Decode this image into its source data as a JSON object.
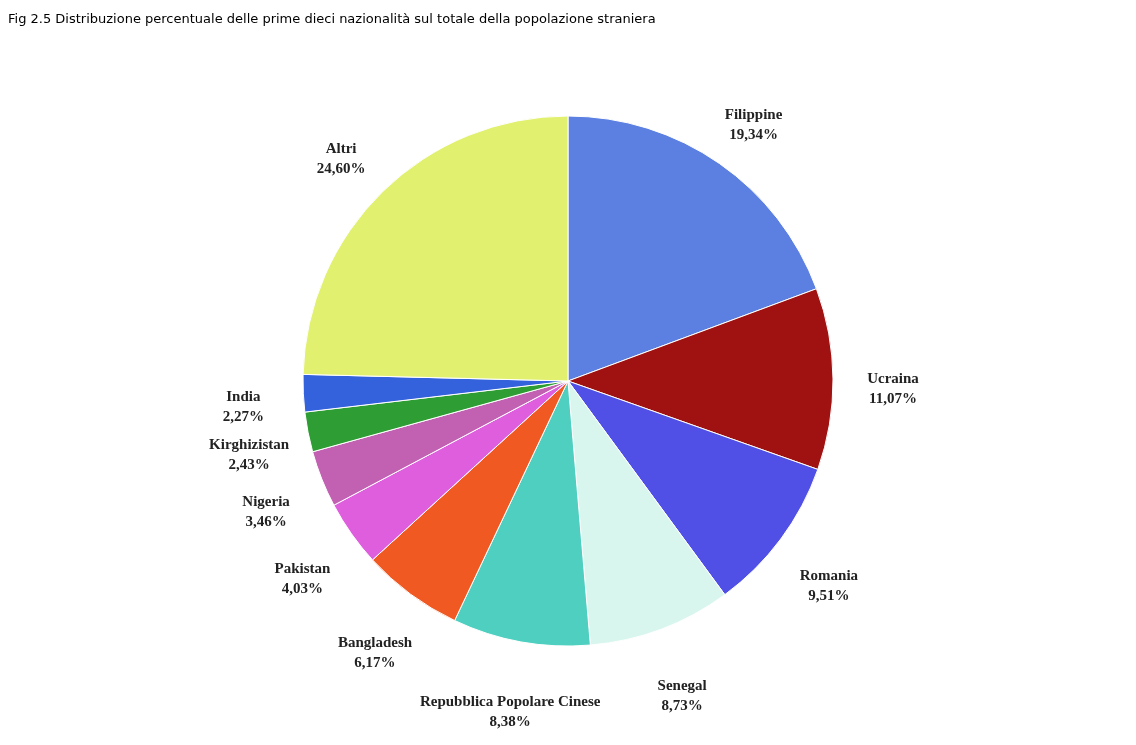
{
  "chart_data": {
    "type": "pie",
    "title": "Fig 2.5 Distribuzione percentuale delle prime dieci nazionalità sul totale della popolazione straniera",
    "categories": [
      "Filippine",
      "Ucraina",
      "Romania",
      "Senegal",
      "Repubblica Popolare Cinese",
      "Bangladesh",
      "Pakistan",
      "Nigeria",
      "Kirghizistan",
      "India",
      "Altri"
    ],
    "values": [
      19.34,
      11.07,
      9.51,
      8.73,
      8.38,
      6.17,
      4.03,
      3.46,
      2.43,
      2.27,
      24.6
    ],
    "value_labels": [
      "19,34%",
      "11,07%",
      "9,51%",
      "8,73%",
      "8,38%",
      "6,17%",
      "4,03%",
      "3,46%",
      "2,43%",
      "2,27%",
      "24,60%"
    ],
    "colors": [
      "#5b80e2",
      "#a01212",
      "#5050e6",
      "#d8f6ee",
      "#4fcfc0",
      "#f05a22",
      "#de5ede",
      "#c260b2",
      "#2e9e34",
      "#3462dc",
      "#e2f070"
    ]
  }
}
